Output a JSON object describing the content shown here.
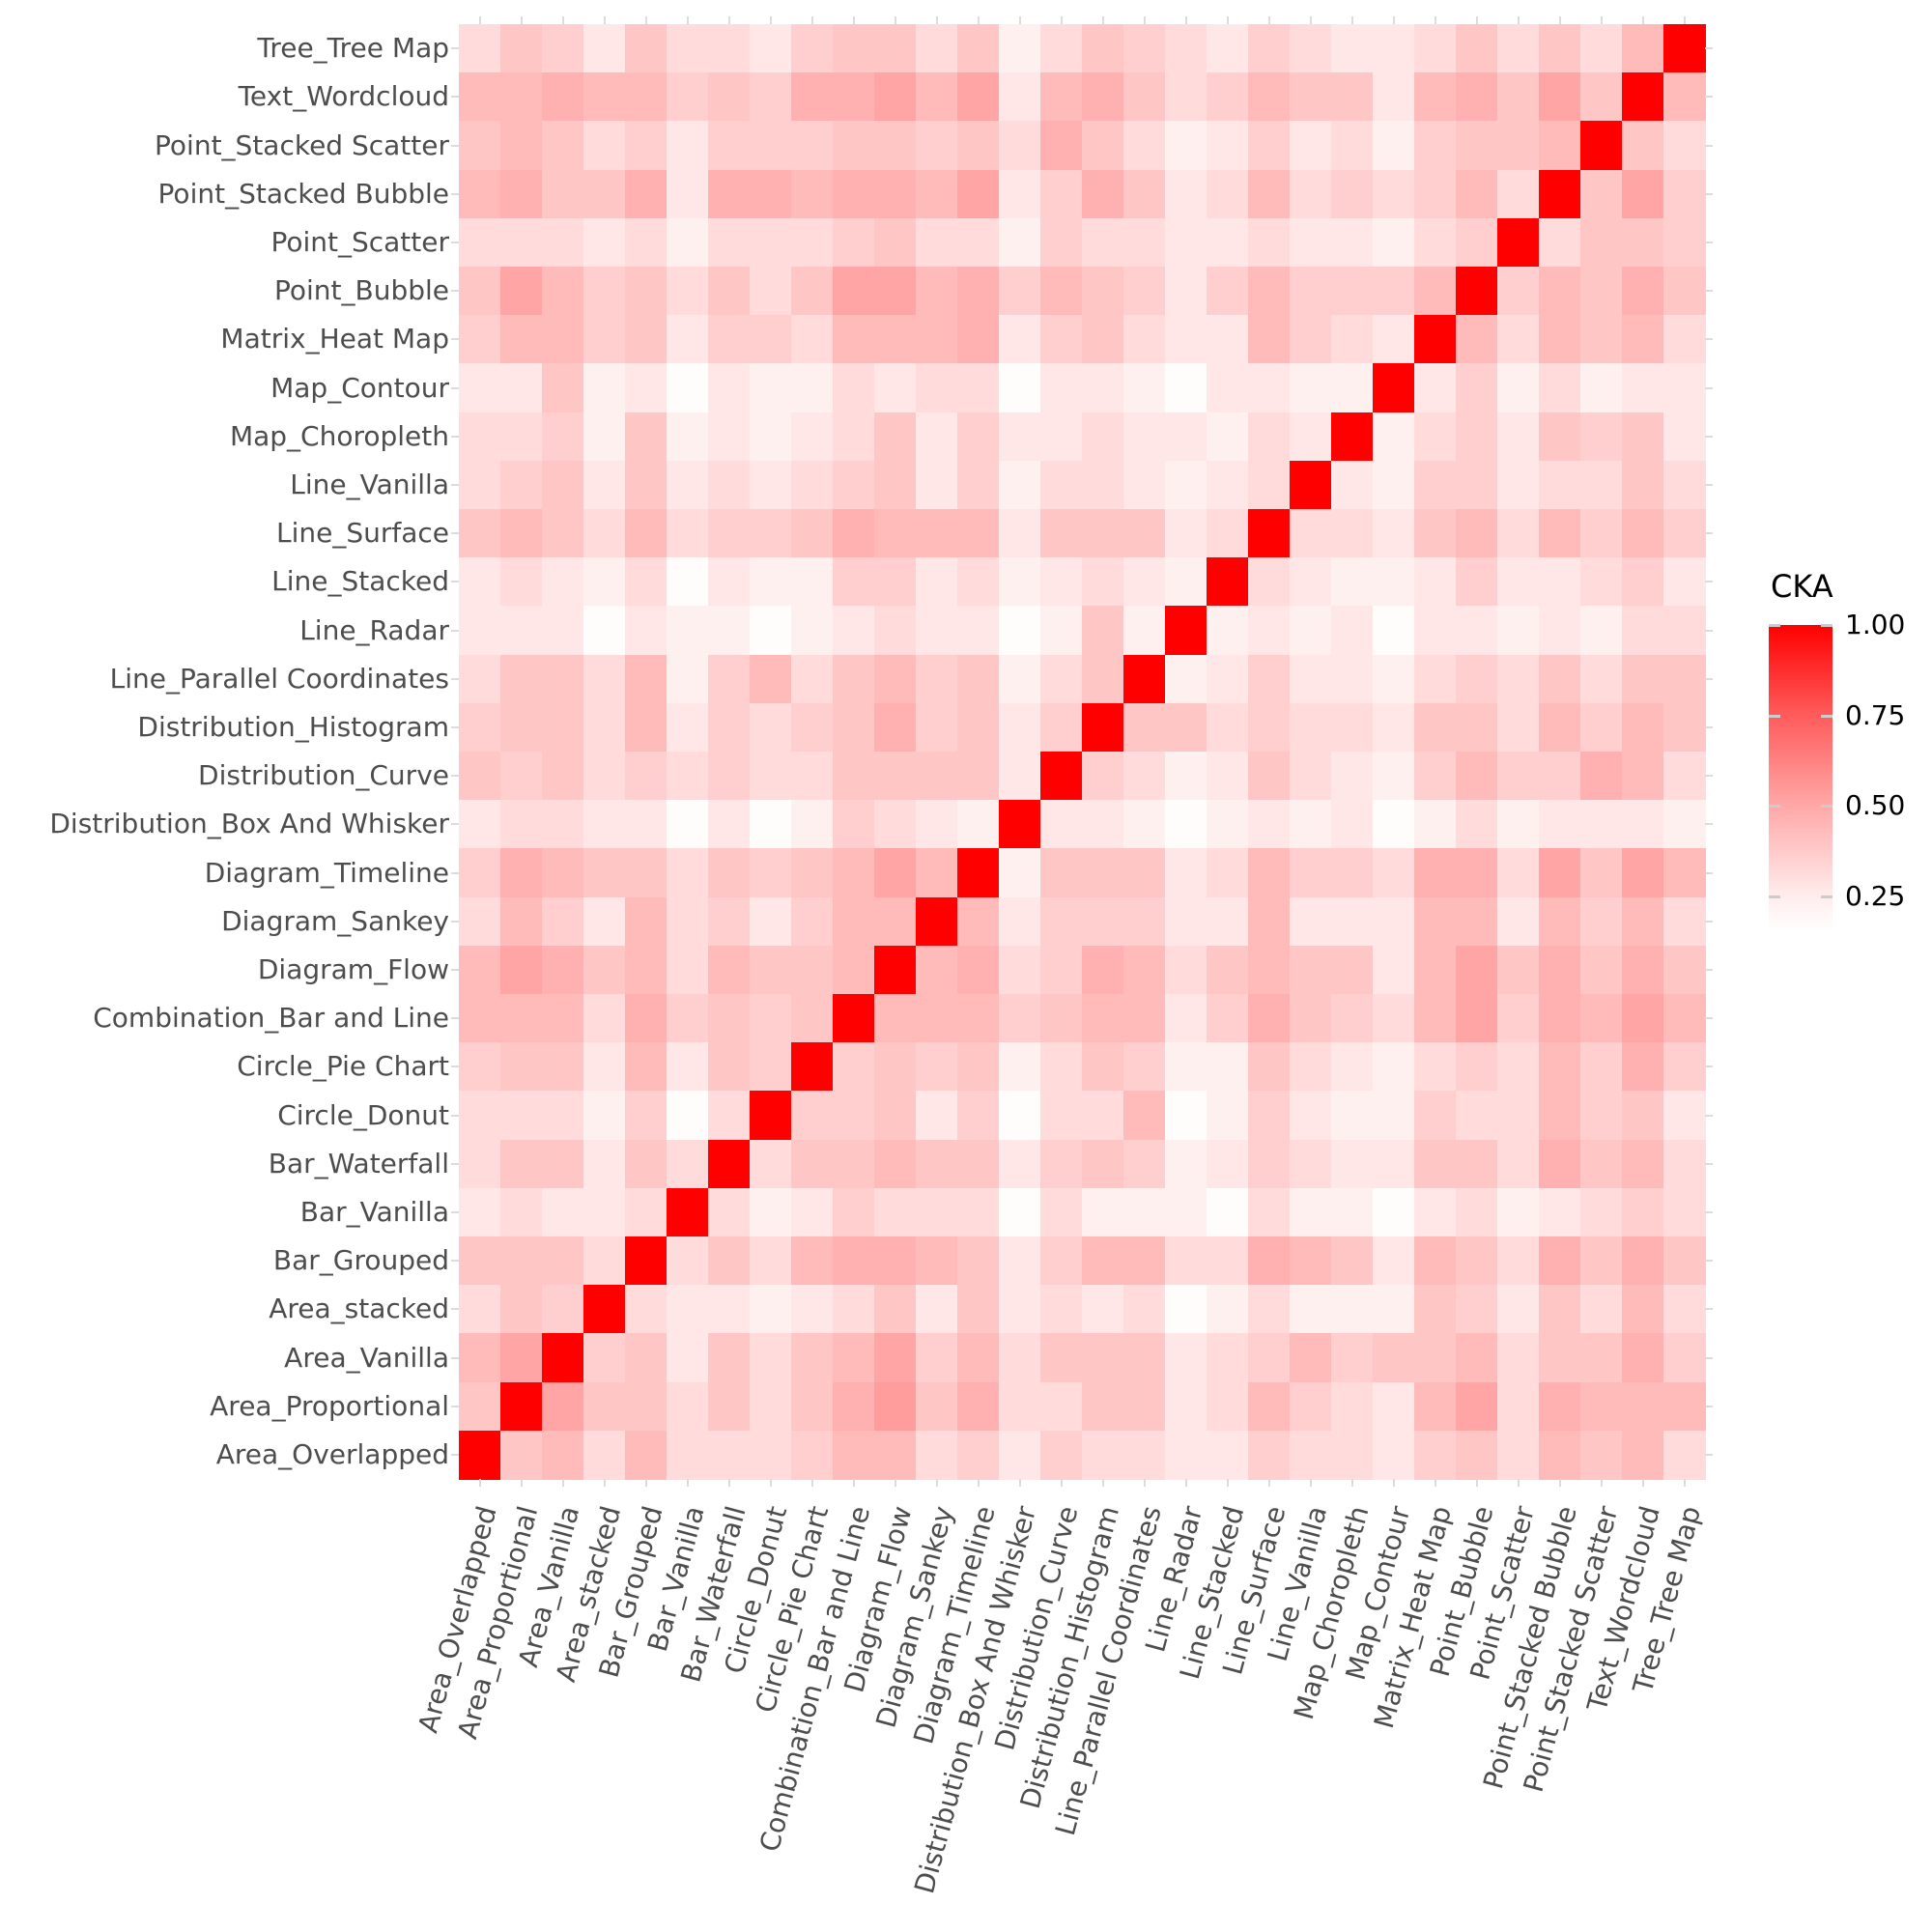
{
  "chart_data": {
    "type": "heatmap",
    "title": "",
    "xlabel": "",
    "ylabel": "",
    "legend": {
      "title": "CKA",
      "ticks": [
        "1.00",
        "0.75",
        "0.50",
        "0.25"
      ],
      "tick_values": [
        1.0,
        0.75,
        0.5,
        0.25
      ],
      "range": [
        0.15,
        1.0
      ],
      "low_color": "#ffffff",
      "high_color": "#ff0000",
      "position": "right"
    },
    "x_categories": [
      "Area_Overlapped",
      "Area_Proportional",
      "Area_Vanilla",
      "Area_stacked",
      "Bar_Grouped",
      "Bar_Vanilla",
      "Bar_Waterfall",
      "Circle_Donut",
      "Circle_Pie Chart",
      "Combination_Bar and Line",
      "Diagram_Flow",
      "Diagram_Sankey",
      "Diagram_Timeline",
      "Distribution_Box And Whisker",
      "Distribution_Curve",
      "Distribution_Histogram",
      "Line_Parallel Coordinates",
      "Line_Radar",
      "Line_Stacked",
      "Line_Surface",
      "Line_Vanilla",
      "Map_Choropleth",
      "Map_Contour",
      "Matrix_Heat Map",
      "Point_Bubble",
      "Point_Scatter",
      "Point_Stacked Bubble",
      "Point_Stacked Scatter",
      "Text_Wordcloud",
      "Tree_Tree Map"
    ],
    "y_categories_top_to_bottom": [
      "Tree_Tree Map",
      "Text_Wordcloud",
      "Point_Stacked Scatter",
      "Point_Stacked Bubble",
      "Point_Scatter",
      "Point_Bubble",
      "Matrix_Heat Map",
      "Map_Contour",
      "Map_Choropleth",
      "Line_Vanilla",
      "Line_Surface",
      "Line_Stacked",
      "Line_Radar",
      "Line_Parallel Coordinates",
      "Distribution_Histogram",
      "Distribution_Curve",
      "Distribution_Box And Whisker",
      "Diagram_Timeline",
      "Diagram_Sankey",
      "Diagram_Flow",
      "Combination_Bar and Line",
      "Circle_Pie Chart",
      "Circle_Donut",
      "Bar_Waterfall",
      "Bar_Vanilla",
      "Bar_Grouped",
      "Area_stacked",
      "Area_Vanilla",
      "Area_Proportional",
      "Area_Overlapped"
    ],
    "code_scale": {
      "A": 0.16,
      "B": 0.2,
      "C": 0.23,
      "D": 0.27,
      "E": 0.31,
      "F": 0.34,
      "G": 0.38,
      "H": 0.41,
      "I": 0.45,
      "J": 0.48,
      "X": 1.0
    },
    "rows_coded": [
      "DFECFDDCEFFDFBDFEDCEDCCDFDFDGX",
      "GGHGGEFEHHIGICGHFDEGFFCGHFIFXG",
      "FGFDECEEEFFEFDHFDBCECDBEFFGXFD",
      "GHFFHCHHGHHGICEHFCDGDEDEGDXFIE",
      "DDDCDBDDDEFDDBEDDCCDCCBDEXDFFE",
      "FIGEFDFDFIIGHEGFECEGEEEGXEGFHF",
      "EGGEFCEEDGGGHCEFDCCGEDCXGDGFGD",
      "CCFBCACBBDCDDACCBACCBBXCEBDBCC",
      "DDEBFBCBCDFCECCDCCBDCXBDECFEFC",
      "DEFCFCDCDEFCEBDDCBCDXCBEECDDFD",
      "FGFDGDEEFHGGGCFFFCDXDDCFGDGEGE",
      "CDCBDACBBEECDBCDCBXDCBBCECCDEC",
      "CCCACBBABCDCCABFBXBCBCACCBCBDD",
      "DFFDGBEGDFGEFBDFXBCECCBDEDFDFF",
      "EFFDGCEDEFHEFCEXFFDEDDCFFDGEGF",
      "FEFDEDEDDFFFFCXEDBCFDCBEGEEHGD",
      "CDDCCACABEDCBXCCBABCBCABDBCCCB",
      "EHGFFDFEFGIGXBFFFCDGEEDHHDIFIG",
      "DGECGDECEGGXGCEEECCGCCCGGCGEGD",
      "GIHFGDGFFGXGHDEHGDFGFFCGIFHFHF",
      "GGGDHEFEFXGGGEFGGCEHFEDGIEHGIG",
      "EFFCGCFEXEFEFBDFEBBFDCBDEDGEHE",
      "DDDBEADXEEFCEADDGABECBBEDDGEFC",
      "DFFCFDXDFFGFFCEFEBCEDCCFFDHFGD",
      "CDCCDXDBCEDDDADBBBADBBACDBCDED",
      "FFFDXDFDGHHGFCEGGDDHGFCGFDHFHF",
      "DFEXDCCBCDFCFCDCDABDBBBFECFDGD",
      "GIXEFCFDFGIEGDFFFCDEGEFFGDFFHE",
      "FXIFFDFDFHJFHDDFFCDGEDCGIDHGGG",
      "XFGDGDDDEGGDECEDDCCEDDCEFDGFGD"
    ]
  }
}
